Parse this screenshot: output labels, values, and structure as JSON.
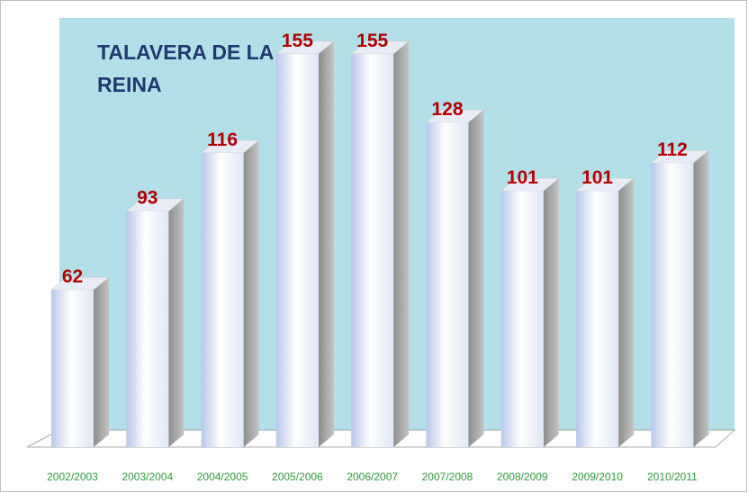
{
  "chart_data": {
    "type": "bar",
    "title": "TALAVERA DE LA REINA",
    "categories": [
      "2002/2003",
      "2003/2004",
      "2004/2005",
      "2005/2006",
      "2006/2007",
      "2007/2008",
      "2008/2009",
      "2009/2010",
      "2010/2011"
    ],
    "values": [
      62,
      93,
      116,
      155,
      155,
      128,
      101,
      101,
      112
    ]
  }
}
